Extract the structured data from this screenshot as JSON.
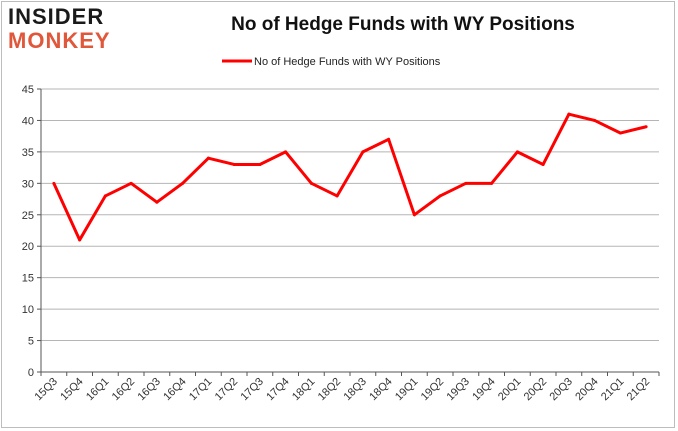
{
  "logo": {
    "line1": "INSIDER",
    "line2": "MONKEY"
  },
  "chart_data": {
    "type": "line",
    "title": "No of Hedge Funds with WY Positions",
    "xlabel": "",
    "ylabel": "",
    "categories": [
      "15Q3",
      "15Q4",
      "16Q1",
      "16Q2",
      "16Q3",
      "16Q4",
      "17Q1",
      "17Q2",
      "17Q3",
      "17Q4",
      "18Q1",
      "18Q2",
      "18Q3",
      "18Q4",
      "19Q1",
      "19Q2",
      "19Q3",
      "19Q4",
      "20Q1",
      "20Q2",
      "20Q3",
      "20Q4",
      "21Q1",
      "21Q2"
    ],
    "series": [
      {
        "name": "No of Hedge Funds with WY Positions",
        "values": [
          30,
          21,
          28,
          30,
          27,
          30,
          34,
          33,
          33,
          35,
          30,
          28,
          35,
          37,
          25,
          28,
          30,
          30,
          35,
          33,
          41,
          40,
          38,
          39
        ],
        "color": "#ff0000"
      }
    ],
    "ylim": [
      0,
      45
    ],
    "yticks": [
      0,
      5,
      10,
      15,
      20,
      25,
      30,
      35,
      40,
      45
    ],
    "grid": true,
    "legend_position": "top-center"
  }
}
